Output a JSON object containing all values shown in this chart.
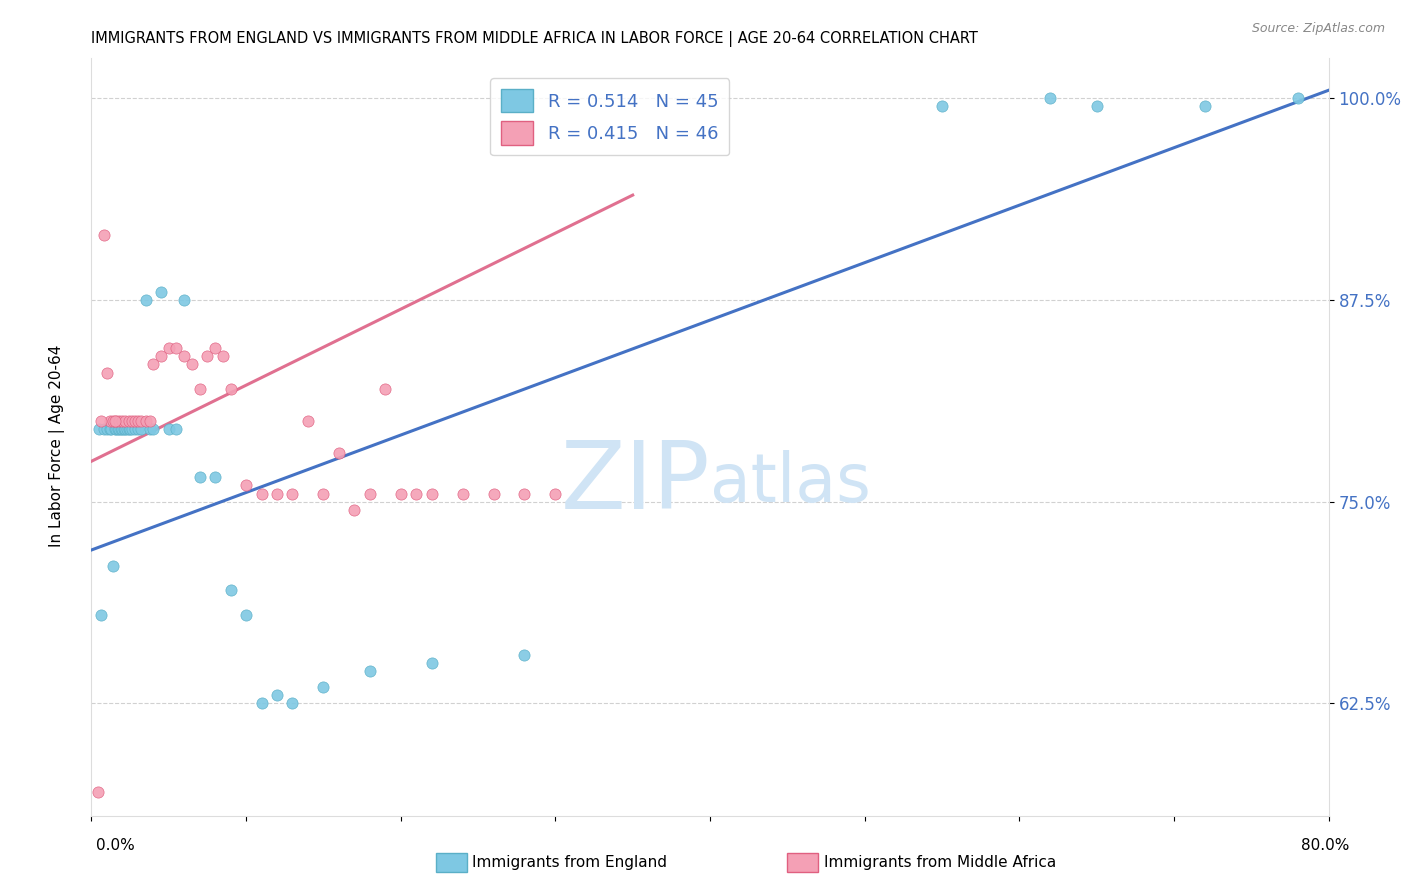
{
  "title": "IMMIGRANTS FROM ENGLAND VS IMMIGRANTS FROM MIDDLE AFRICA IN LABOR FORCE | AGE 20-64 CORRELATION CHART",
  "source": "Source: ZipAtlas.com",
  "ylabel": "In Labor Force | Age 20-64",
  "x_min": 0.0,
  "x_max": 0.8,
  "y_min": 0.555,
  "y_max": 1.025,
  "legend_line1": "R = 0.514   N = 45",
  "legend_line2": "R = 0.415   N = 46",
  "england_color": "#7ec8e3",
  "england_color_edge": "#5aafc7",
  "middle_africa_color": "#f4a0b5",
  "middle_africa_color_edge": "#e06080",
  "trend_blue": "#4472c4",
  "trend_pink": "#e07090",
  "watermark_color": "#d0e4f5",
  "ytick_color": "#4472c4",
  "england_x": [
    0.005,
    0.008,
    0.01,
    0.012,
    0.013,
    0.015,
    0.016,
    0.017,
    0.018,
    0.019,
    0.02,
    0.021,
    0.022,
    0.023,
    0.024,
    0.025,
    0.026,
    0.028,
    0.03,
    0.032,
    0.035,
    0.038,
    0.04,
    0.045,
    0.05,
    0.055,
    0.06,
    0.07,
    0.08,
    0.09,
    0.1,
    0.11,
    0.12,
    0.13,
    0.15,
    0.18,
    0.22,
    0.28,
    0.55,
    0.62,
    0.65,
    0.72,
    0.78,
    0.006,
    0.014
  ],
  "england_y": [
    0.795,
    0.795,
    0.795,
    0.795,
    0.795,
    0.795,
    0.795,
    0.795,
    0.795,
    0.795,
    0.795,
    0.795,
    0.795,
    0.795,
    0.795,
    0.795,
    0.795,
    0.795,
    0.795,
    0.795,
    0.875,
    0.795,
    0.795,
    0.88,
    0.795,
    0.795,
    0.875,
    0.765,
    0.765,
    0.695,
    0.68,
    0.625,
    0.63,
    0.625,
    0.635,
    0.645,
    0.65,
    0.655,
    0.995,
    1.0,
    0.995,
    0.995,
    1.0,
    0.68,
    0.71
  ],
  "middle_africa_x": [
    0.004,
    0.008,
    0.01,
    0.012,
    0.014,
    0.016,
    0.018,
    0.02,
    0.022,
    0.024,
    0.026,
    0.028,
    0.03,
    0.032,
    0.035,
    0.038,
    0.04,
    0.045,
    0.05,
    0.055,
    0.06,
    0.065,
    0.07,
    0.075,
    0.08,
    0.085,
    0.09,
    0.1,
    0.11,
    0.12,
    0.13,
    0.14,
    0.15,
    0.16,
    0.17,
    0.18,
    0.19,
    0.2,
    0.21,
    0.22,
    0.24,
    0.26,
    0.28,
    0.3,
    0.006,
    0.015
  ],
  "middle_africa_y": [
    0.57,
    0.915,
    0.83,
    0.8,
    0.8,
    0.8,
    0.8,
    0.8,
    0.8,
    0.8,
    0.8,
    0.8,
    0.8,
    0.8,
    0.8,
    0.8,
    0.835,
    0.84,
    0.845,
    0.845,
    0.84,
    0.835,
    0.82,
    0.84,
    0.845,
    0.84,
    0.82,
    0.76,
    0.755,
    0.755,
    0.755,
    0.8,
    0.755,
    0.78,
    0.745,
    0.755,
    0.82,
    0.755,
    0.755,
    0.755,
    0.755,
    0.755,
    0.755,
    0.755,
    0.8,
    0.8
  ],
  "blue_trend_x": [
    0.0,
    0.8
  ],
  "blue_trend_y": [
    0.72,
    1.005
  ],
  "pink_trend_x": [
    0.0,
    0.35
  ],
  "pink_trend_y": [
    0.775,
    0.94
  ]
}
